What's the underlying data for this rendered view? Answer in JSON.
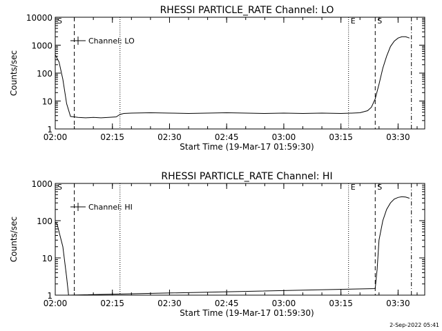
{
  "footer_date": "2-Sep-2022 05:41",
  "chart_data": [
    {
      "type": "line",
      "title": "RHESSI PARTICLE_RATE Channel: LO",
      "xlabel": "Start Time (19-Mar-17 01:59:30)",
      "ylabel": "Counts/sec",
      "y_scale": "log",
      "ylim": [
        1,
        10000
      ],
      "y_ticks": [
        1,
        10,
        100,
        1000,
        10000
      ],
      "y_tick_labels": [
        "1",
        "10",
        "100",
        "1000",
        "10000"
      ],
      "xlim": [
        "02:00",
        "03:37"
      ],
      "x_ticks": [
        "02:00",
        "02:15",
        "02:30",
        "02:45",
        "03:00",
        "03:15",
        "03:30"
      ],
      "legend": {
        "label": "Channel: LO",
        "position": "top-left"
      },
      "series": [
        {
          "name": "Channel: LO",
          "x": [
            "02:00",
            "02:01",
            "02:02",
            "02:03",
            "02:04",
            "02:05",
            "02:06",
            "02:08",
            "02:10",
            "02:12",
            "02:14",
            "02:16",
            "02:17",
            "02:18",
            "02:20",
            "02:25",
            "02:30",
            "02:35",
            "02:40",
            "02:45",
            "02:50",
            "02:55",
            "03:00",
            "03:05",
            "03:10",
            "03:15",
            "03:18",
            "03:20",
            "03:22",
            "03:23",
            "03:24",
            "03:25",
            "03:26",
            "03:27",
            "03:28",
            "03:29",
            "03:30",
            "03:31",
            "03:32",
            "03:33"
          ],
          "y": [
            450,
            250,
            60,
            8,
            2.8,
            2.7,
            2.6,
            2.5,
            2.6,
            2.5,
            2.6,
            2.7,
            3.3,
            3.6,
            3.7,
            3.8,
            3.7,
            3.6,
            3.7,
            3.8,
            3.7,
            3.6,
            3.7,
            3.6,
            3.7,
            3.6,
            3.7,
            3.8,
            4.5,
            6,
            12,
            40,
            150,
            400,
            900,
            1400,
            1800,
            2000,
            2000,
            1800
          ]
        }
      ],
      "markers": [
        {
          "label": "S",
          "x": "02:00",
          "style": "solid"
        },
        {
          "label": "",
          "x": "02:05",
          "style": "dashed"
        },
        {
          "label": "",
          "x": "02:17",
          "style": "dotted"
        },
        {
          "label": "E",
          "x": "03:17",
          "style": "dotted"
        },
        {
          "label": "S",
          "x": "03:24",
          "style": "dashed"
        },
        {
          "label": "",
          "x": "03:33.5",
          "style": "dash-dot"
        }
      ]
    },
    {
      "type": "line",
      "title": "RHESSI PARTICLE_RATE Channel: HI",
      "xlabel": "Start Time (19-Mar-17 01:59:30)",
      "ylabel": "Counts/sec",
      "y_scale": "log",
      "ylim": [
        1,
        1000
      ],
      "y_ticks": [
        1,
        10,
        100,
        1000
      ],
      "y_tick_labels": [
        "1",
        "10",
        "100",
        "1000"
      ],
      "xlim": [
        "02:00",
        "03:37"
      ],
      "x_ticks": [
        "02:00",
        "02:15",
        "02:30",
        "02:45",
        "03:00",
        "03:15",
        "03:30"
      ],
      "legend": {
        "label": "Channel: HI",
        "position": "top-left"
      },
      "series": [
        {
          "name": "Channel: HI",
          "x": [
            "02:00",
            "02:00.5",
            "02:01",
            "02:02",
            "02:03",
            "02:03.5",
            "03:24",
            "03:24.5",
            "03:25",
            "03:26",
            "03:27",
            "03:28",
            "03:29",
            "03:30",
            "03:31",
            "03:32",
            "03:33"
          ],
          "y": [
            90,
            80,
            50,
            20,
            3,
            1,
            1.5,
            5,
            30,
            100,
            200,
            300,
            380,
            420,
            440,
            430,
            400
          ]
        }
      ],
      "markers": [
        {
          "label": "S",
          "x": "02:00",
          "style": "solid"
        },
        {
          "label": "",
          "x": "02:05",
          "style": "dashed"
        },
        {
          "label": "",
          "x": "02:17",
          "style": "dotted"
        },
        {
          "label": "E",
          "x": "03:17",
          "style": "dotted"
        },
        {
          "label": "S",
          "x": "03:24",
          "style": "dashed"
        },
        {
          "label": "",
          "x": "03:33.5",
          "style": "dash-dot"
        }
      ]
    }
  ]
}
